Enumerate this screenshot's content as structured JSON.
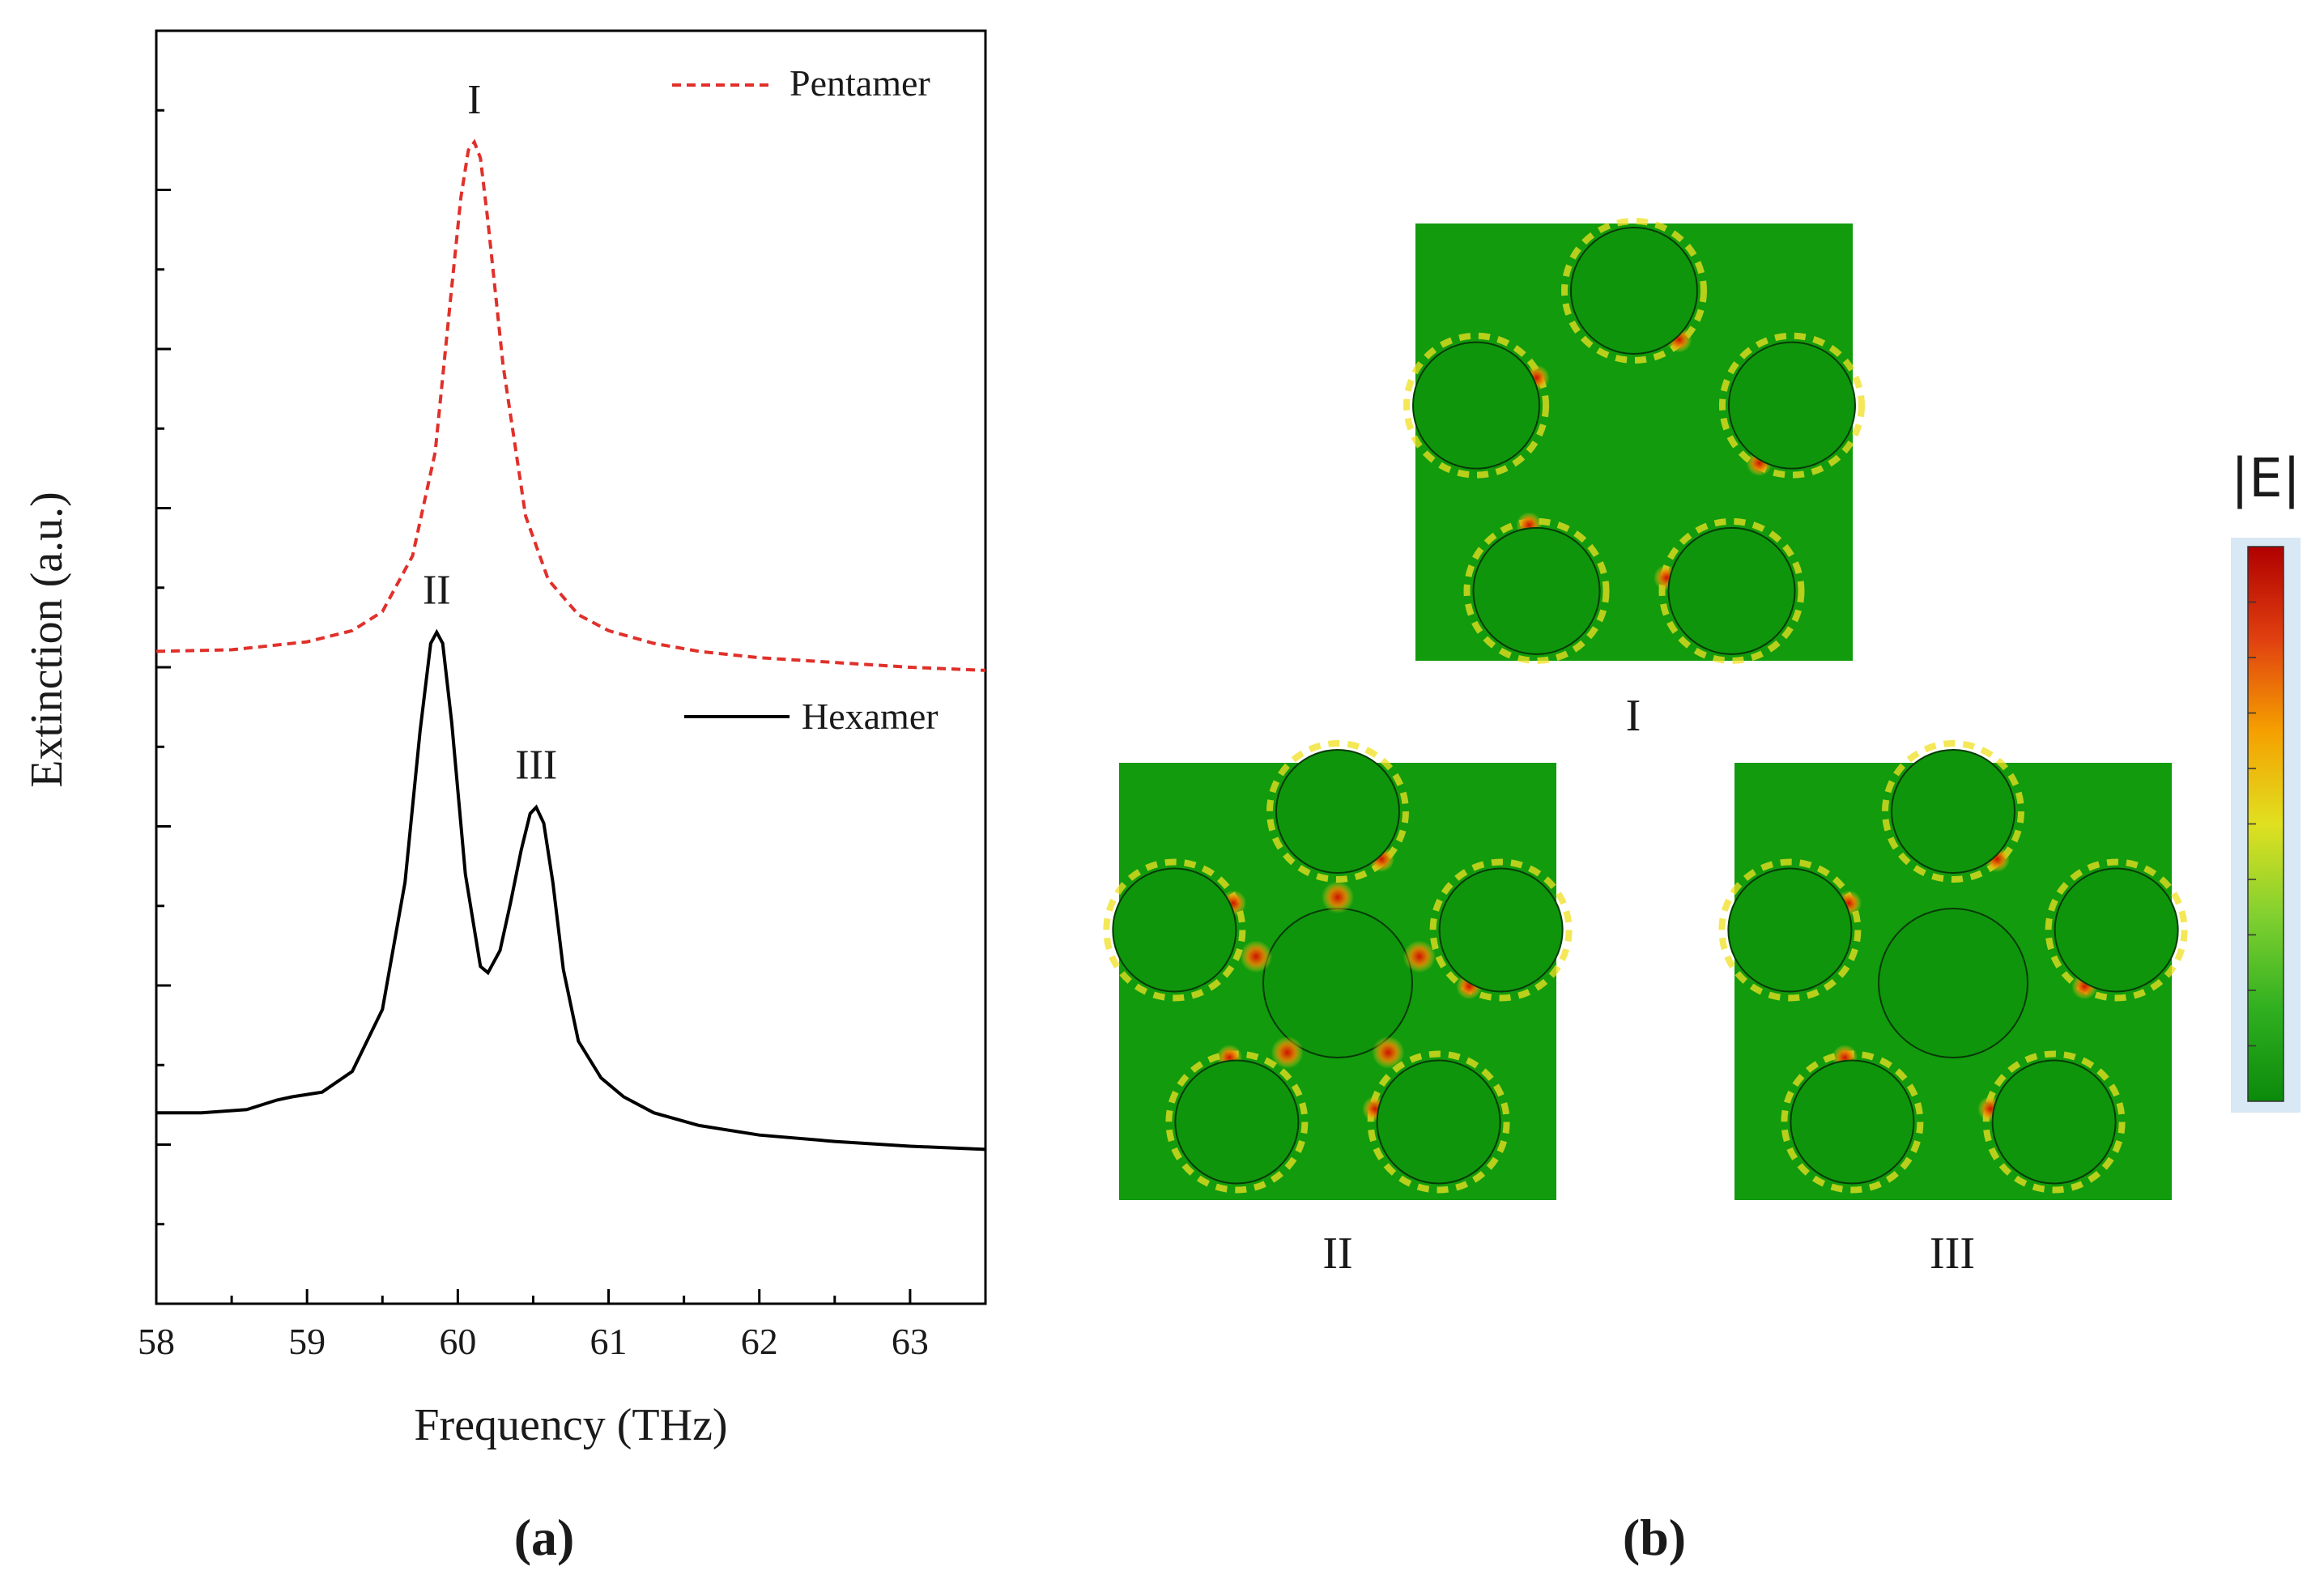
{
  "colors": {
    "field_background": "#119b0d",
    "pentamer_line": "#e0302a",
    "hexamer_line": "#000000",
    "axis": "#000000",
    "hot_red": "#e02010",
    "hot_yellow": "#f0e020",
    "particle_outline": "#063a06"
  },
  "panel_a": {
    "label": "(a)",
    "peak_labels": [
      "I",
      "II",
      "III"
    ]
  },
  "panel_b": {
    "label": "(b)",
    "maps": [
      {
        "label": "I",
        "mode": "pentamer"
      },
      {
        "label": "II",
        "mode": "hexamer"
      },
      {
        "label": "III",
        "mode": "hexamer"
      }
    ],
    "colorbar_title": "|E|",
    "colorbar_stops": [
      "#0a8a0a",
      "#30b020",
      "#80d030",
      "#e0e020",
      "#f5a000",
      "#e04010",
      "#b00000"
    ]
  },
  "chart_data": {
    "type": "line",
    "title": "",
    "xlabel": "Frequency (THz)",
    "ylabel": "Extinction (a.u.)",
    "xlim": [
      58,
      63.5
    ],
    "ylim": [
      0,
      8
    ],
    "xticks": [
      58,
      59,
      60,
      61,
      62,
      63
    ],
    "xtick_labels": [
      "58",
      "59",
      "60",
      "61",
      "62",
      "63"
    ],
    "legend": "top-right",
    "series": [
      {
        "name": "Pentamer",
        "style": "dashed",
        "color": "#e0302a",
        "x": [
          58.0,
          58.5,
          59.0,
          59.3,
          59.5,
          59.7,
          59.85,
          59.95,
          60.02,
          60.07,
          60.11,
          60.15,
          60.2,
          60.3,
          60.45,
          60.6,
          60.8,
          61.0,
          61.3,
          61.6,
          62.0,
          62.5,
          63.0,
          63.5
        ],
        "y": [
          4.1,
          4.11,
          4.16,
          4.23,
          4.35,
          4.7,
          5.35,
          6.3,
          6.95,
          7.25,
          7.3,
          7.2,
          6.8,
          5.9,
          4.95,
          4.55,
          4.33,
          4.23,
          4.15,
          4.1,
          4.06,
          4.03,
          4.0,
          3.98
        ]
      },
      {
        "name": "Hexamer",
        "style": "solid",
        "color": "#000000",
        "x": [
          58.0,
          58.3,
          58.6,
          58.8,
          58.9,
          59.1,
          59.3,
          59.5,
          59.65,
          59.75,
          59.82,
          59.86,
          59.9,
          59.96,
          60.05,
          60.15,
          60.2,
          60.28,
          60.35,
          60.42,
          60.48,
          60.52,
          60.57,
          60.63,
          60.7,
          60.8,
          60.95,
          61.1,
          61.3,
          61.6,
          62.0,
          62.5,
          63.0,
          63.5
        ],
        "y": [
          1.2,
          1.2,
          1.22,
          1.28,
          1.3,
          1.33,
          1.46,
          1.85,
          2.65,
          3.6,
          4.15,
          4.22,
          4.15,
          3.65,
          2.7,
          2.12,
          2.08,
          2.22,
          2.52,
          2.85,
          3.08,
          3.12,
          3.02,
          2.65,
          2.1,
          1.65,
          1.42,
          1.3,
          1.2,
          1.12,
          1.06,
          1.02,
          0.99,
          0.97
        ]
      }
    ],
    "annotations": [
      {
        "text": "I",
        "x": 60.11,
        "y": 7.48
      },
      {
        "text": "II",
        "x": 59.86,
        "y": 4.4
      },
      {
        "text": "III",
        "x": 60.52,
        "y": 3.3
      }
    ]
  }
}
